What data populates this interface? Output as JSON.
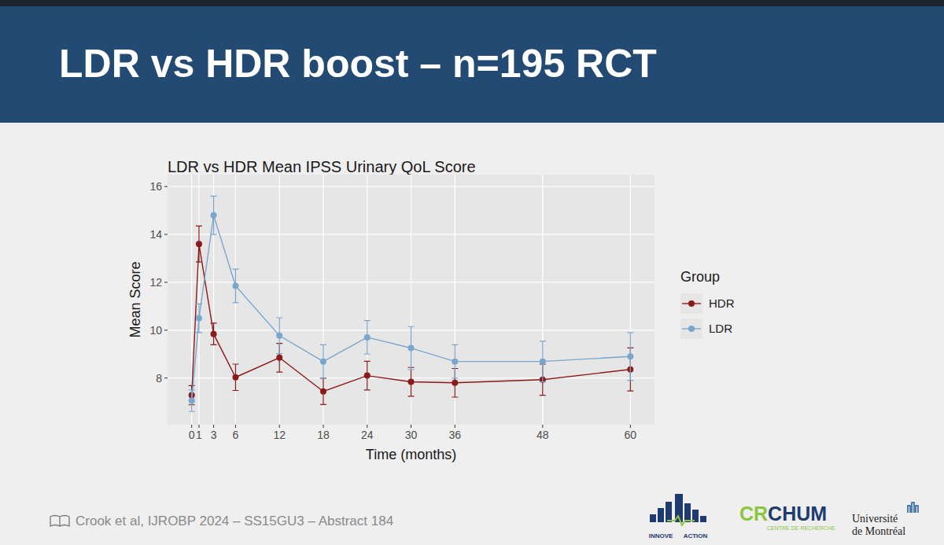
{
  "slide": {
    "title": "LDR vs HDR boost – n=195 RCT",
    "citation": "Crook et al, IJROBP 2024 – SS15GU3 – Abstract 184",
    "logo_innove": "INNOVE",
    "logo_action": "ACTION",
    "logo_cr": "CR",
    "logo_chum": "CHUM",
    "logo_centre": "CENTRE DE RECHERCHE",
    "logo_udem_1": "Université",
    "logo_udem_2": "de Montréal"
  },
  "chart_data": {
    "type": "line",
    "title": "LDR vs HDR Mean IPSS Urinary QoL Score",
    "x_label": "Time (months)",
    "y_label": "Mean Score",
    "legend_title": "Group",
    "legend": "right",
    "grid": true,
    "marker": "circle",
    "x": [
      0,
      1,
      3,
      6,
      12,
      18,
      24,
      30,
      36,
      48,
      60
    ],
    "xlim": [
      -3.3,
      63.3
    ],
    "xticks": [
      0,
      1,
      3,
      6,
      12,
      18,
      24,
      30,
      36,
      48,
      60
    ],
    "ylim": [
      6.05,
      16.5
    ],
    "yticks": [
      8,
      10,
      12,
      14,
      16
    ],
    "series": [
      {
        "name": "HDR",
        "color": "#8b1a1a",
        "values": [
          7.28,
          13.6,
          9.84,
          8.03,
          8.85,
          7.44,
          8.1,
          7.84,
          7.8,
          7.93,
          8.36
        ],
        "errors": [
          0.4,
          0.75,
          0.45,
          0.55,
          0.6,
          0.55,
          0.6,
          0.6,
          0.6,
          0.65,
          0.9
        ]
      },
      {
        "name": "LDR",
        "color": "#7aa6cc",
        "values": [
          7.05,
          10.5,
          14.8,
          11.85,
          9.77,
          8.69,
          9.7,
          9.25,
          8.69,
          8.69,
          8.9
        ],
        "errors": [
          0.45,
          0.6,
          0.8,
          0.7,
          0.75,
          0.7,
          0.7,
          0.9,
          0.7,
          0.85,
          1.0
        ]
      }
    ]
  }
}
